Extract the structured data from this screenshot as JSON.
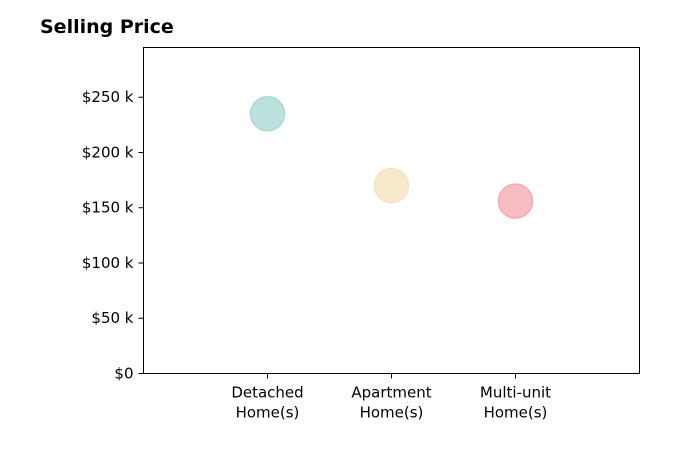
{
  "chart_data": {
    "type": "scatter",
    "title": "Selling Price",
    "xlabel": "",
    "ylabel": "",
    "categories": [
      [
        "Detached",
        "Home(s)"
      ],
      [
        "Apartment",
        "Home(s)"
      ],
      [
        "Multi-unit",
        "Home(s)"
      ]
    ],
    "values": [
      235000,
      170000,
      156000
    ],
    "colors": [
      "#a8dad5",
      "#f5e3bd",
      "#f4aab2"
    ],
    "ylim": [
      0,
      295000
    ],
    "yticks": [
      0,
      50000,
      100000,
      150000,
      200000,
      250000
    ],
    "ytick_labels": [
      "$0",
      "$50 k",
      "$100 k",
      "$150 k",
      "$200 k",
      "$250 k"
    ],
    "grid": false,
    "legend": "none"
  }
}
